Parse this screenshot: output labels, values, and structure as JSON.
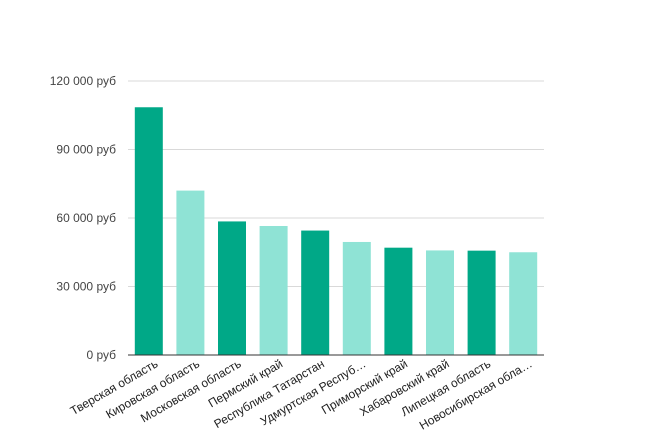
{
  "chart_data": {
    "type": "bar",
    "title": "",
    "xlabel": "",
    "ylabel": "",
    "ylim": [
      0,
      120000
    ],
    "yticks": [
      0,
      30000,
      60000,
      90000,
      120000
    ],
    "ytick_labels": [
      "0 руб",
      "30 000 руб",
      "60 000 руб",
      "90 000 руб",
      "120 000 руб"
    ],
    "grid": true,
    "legend": "none",
    "categories": [
      "Тверская область",
      "Кировская область",
      "Московская область",
      "Пермский край",
      "Республика Татарстан",
      "Удмуртская Респуб…",
      "Приморский край",
      "Хабаровский край",
      "Липецкая область",
      "Новосибирская обла…"
    ],
    "values": [
      108500,
      72000,
      58500,
      56500,
      54500,
      49500,
      47000,
      45800,
      45700,
      45000
    ],
    "colors": [
      "#00a887",
      "#8fe3d5",
      "#00a887",
      "#8fe3d5",
      "#00a887",
      "#8fe3d5",
      "#00a887",
      "#8fe3d5",
      "#00a887",
      "#8fe3d5"
    ]
  }
}
